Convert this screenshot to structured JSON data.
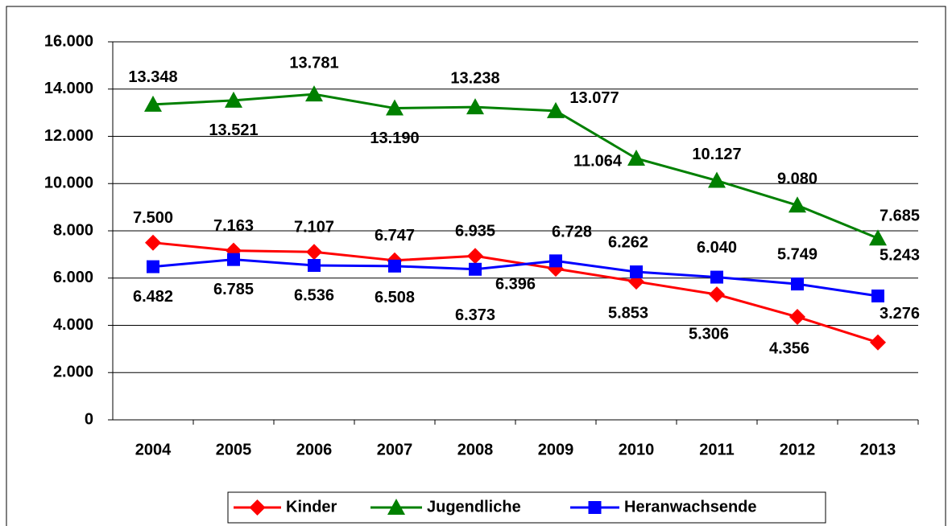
{
  "chart_data": {
    "type": "line",
    "categories": [
      "2004",
      "2005",
      "2006",
      "2007",
      "2008",
      "2009",
      "2010",
      "2011",
      "2012",
      "2013"
    ],
    "series": [
      {
        "name": "Kinder",
        "color": "#ff0000",
        "marker": "diamond",
        "values": [
          7500,
          7163,
          7107,
          6747,
          6935,
          6396,
          5853,
          5306,
          4356,
          3276
        ],
        "value_labels": [
          "7.500",
          "7.163",
          "7.107",
          "6.747",
          "6.935",
          "6.396",
          "5.853",
          "5.306",
          "4.356",
          "3.276"
        ]
      },
      {
        "name": "Jugendliche",
        "color": "#008000",
        "marker": "triangle",
        "values": [
          13348,
          13521,
          13781,
          13190,
          13238,
          13077,
          11064,
          10127,
          9080,
          7685
        ],
        "value_labels": [
          "13.348",
          "13.521",
          "13.781",
          "13.190",
          "13.238",
          "13.077",
          "11.064",
          "10.127",
          "9.080",
          "7.685"
        ]
      },
      {
        "name": "Heranwachsende",
        "color": "#0000ff",
        "marker": "square",
        "values": [
          6482,
          6785,
          6536,
          6508,
          6373,
          6728,
          6262,
          6040,
          5749,
          5243
        ],
        "value_labels": [
          "6.482",
          "6.785",
          "6.536",
          "6.508",
          "6.373",
          "6.728",
          "6.262",
          "6.040",
          "5.749",
          "5.243"
        ]
      }
    ],
    "ylim": [
      0,
      16000
    ],
    "yticks": [
      0,
      {
        "value": 2000,
        "label": "2.000"
      },
      {
        "value": 4000,
        "label": "4.000"
      },
      {
        "value": 6000,
        "label": "6.000"
      },
      {
        "value": 8000,
        "label": "8.000"
      },
      {
        "value": 10000,
        "label": "10.000"
      },
      {
        "value": 12000,
        "label": "12.000"
      },
      {
        "value": 14000,
        "label": "14.000"
      },
      {
        "value": 16000,
        "label": "16.000"
      }
    ],
    "grid": true,
    "legend": "bottom"
  }
}
